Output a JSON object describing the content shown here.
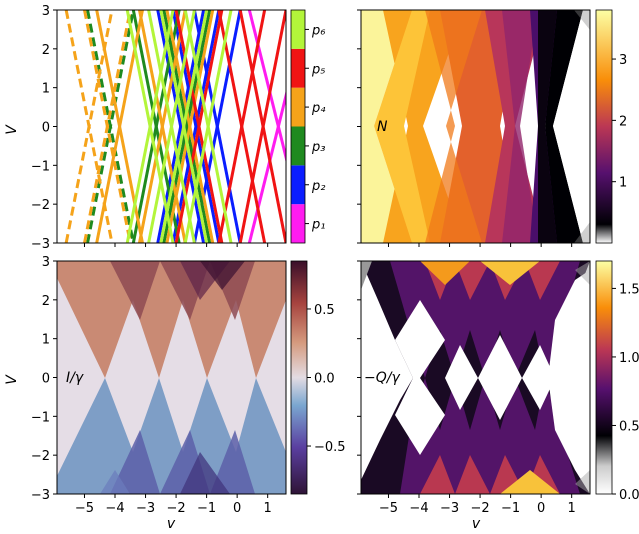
{
  "figure": {
    "type": "2x2 grid of V-v diagrams with colorbars"
  },
  "chart_data": [
    {
      "panel": "top-left",
      "type": "line",
      "xlim": [
        -5.9,
        1.6
      ],
      "ylim": [
        -3,
        3
      ],
      "ylabel": "V",
      "xlabel": "",
      "yticks": [
        -3,
        -2,
        -1,
        0,
        1,
        2,
        3
      ],
      "xticks": [
        -5,
        -4,
        -3,
        -2,
        -1,
        0,
        1
      ],
      "show_xtick_labels": false,
      "legend_colorbar": {
        "labels": [
          "p₁",
          "p₂",
          "p₃",
          "p₄",
          "p₅",
          "p₆"
        ],
        "colors": [
          "#ff1cf0",
          "#0a1dff",
          "#1f8a1f",
          "#f5a31a",
          "#f01414",
          "#b3f53a"
        ]
      },
      "series": [
        {
          "color": "#ff1cf0",
          "dash": false,
          "lines": [
            [
              0.4,
              2.3
            ]
          ]
        },
        {
          "color": "#0a1dff",
          "dash": false,
          "lines": [
            [
              -2.6,
              -1.1
            ],
            [
              -2.1,
              -0.6
            ],
            [
              -1.4,
              0.1
            ]
          ]
        },
        {
          "color": "#1f8a1f",
          "dash": false,
          "lines": [
            [
              -3.4,
              -1.9
            ],
            [
              -2.4,
              -0.9
            ]
          ]
        },
        {
          "color": "#1f8a1f",
          "dash": true,
          "lines": [
            [
              -4.9,
              -3.4
            ]
          ]
        },
        {
          "color": "#f5a31a",
          "dash": false,
          "lines": [
            [
              -4.6,
              -3.1
            ],
            [
              -3.2,
              -1.7
            ],
            [
              -2.3,
              -0.8
            ]
          ]
        },
        {
          "color": "#f5a31a",
          "dash": true,
          "lines": [
            [
              -5.6,
              -4.1
            ],
            [
              -5.0,
              -3.5
            ]
          ]
        },
        {
          "color": "#f01414",
          "dash": false,
          "lines": [
            [
              -2.0,
              -0.5
            ],
            [
              -0.6,
              0.9
            ],
            [
              0.1,
              1.6
            ]
          ]
        },
        {
          "color": "#b3f53a",
          "dash": false,
          "lines": [
            [
              -3.6,
              -2.1
            ],
            [
              -2.9,
              -1.4
            ],
            [
              -2.5,
              -1.0
            ],
            [
              -1.7,
              -0.2
            ]
          ]
        }
      ],
      "line_model": "each pair [a, b] is one X crossing: a line from (v=a, V=3) to (v=b, V=-3) and its mirror from (v=a, V=-3) to (v=b, V=3)"
    },
    {
      "panel": "top-right",
      "type": "heatmap",
      "label": "N",
      "xlim": [
        -5.9,
        1.6
      ],
      "ylim": [
        -3,
        3
      ],
      "colorbar": {
        "ticks": [
          1,
          2,
          3
        ],
        "range": [
          0,
          3.8
        ],
        "colormap": "inferno_r"
      },
      "regions": [
        {
          "center": -5.75,
          "value": 3.7
        },
        {
          "center": -4.1,
          "value": 2.9
        },
        {
          "center": -2.8,
          "value": 2.4
        },
        {
          "center": -1.0,
          "value": 1.5
        },
        {
          "center": 0.0,
          "value": 0.6
        }
      ]
    },
    {
      "panel": "bottom-left",
      "type": "heatmap",
      "label": "I/γ",
      "xlim": [
        -5.9,
        1.6
      ],
      "ylim": [
        -3,
        3
      ],
      "xlabel": "v",
      "ylabel": "V",
      "colorbar": {
        "ticks": [
          -0.5,
          0.0,
          0.5
        ],
        "range": [
          -0.85,
          0.85
        ],
        "colormap": "twilight_shifted"
      },
      "cones": [
        {
          "center": -4.0,
          "value_top": 0.45,
          "value_bottom": -0.4
        },
        {
          "center": -2.4,
          "value_top": 0.6,
          "value_bottom": -0.55
        },
        {
          "center": -1.0,
          "value_top": 0.7,
          "value_bottom": -0.6
        },
        {
          "center": 0.0,
          "value_top": 0.45,
          "value_bottom": -0.45
        }
      ]
    },
    {
      "panel": "bottom-right",
      "type": "heatmap",
      "label": "−Q/γ",
      "xlim": [
        -5.9,
        1.6
      ],
      "ylim": [
        -3,
        3
      ],
      "xlabel": "v",
      "colorbar": {
        "ticks": [
          0.0,
          0.5,
          1.0,
          1.5
        ],
        "range": [
          0,
          1.7
        ],
        "colormap": "inferno_r"
      },
      "peak_value": 1.6
    }
  ],
  "tick_labels": {
    "y": [
      "3",
      "2",
      "1",
      "0",
      "−1",
      "−2",
      "−3"
    ],
    "x": [
      "−5",
      "−4",
      "−3",
      "−2",
      "−1",
      "0",
      "1"
    ],
    "cb_top_left_N": [
      "3",
      "2",
      "1"
    ],
    "cb_bottom_left": [
      "0.5",
      "0.0",
      "−0.5"
    ],
    "cb_bottom_right": [
      "1.5",
      "1.0",
      "0.5",
      "0.0"
    ]
  },
  "axis_labels": {
    "V": "V",
    "v": "v"
  }
}
